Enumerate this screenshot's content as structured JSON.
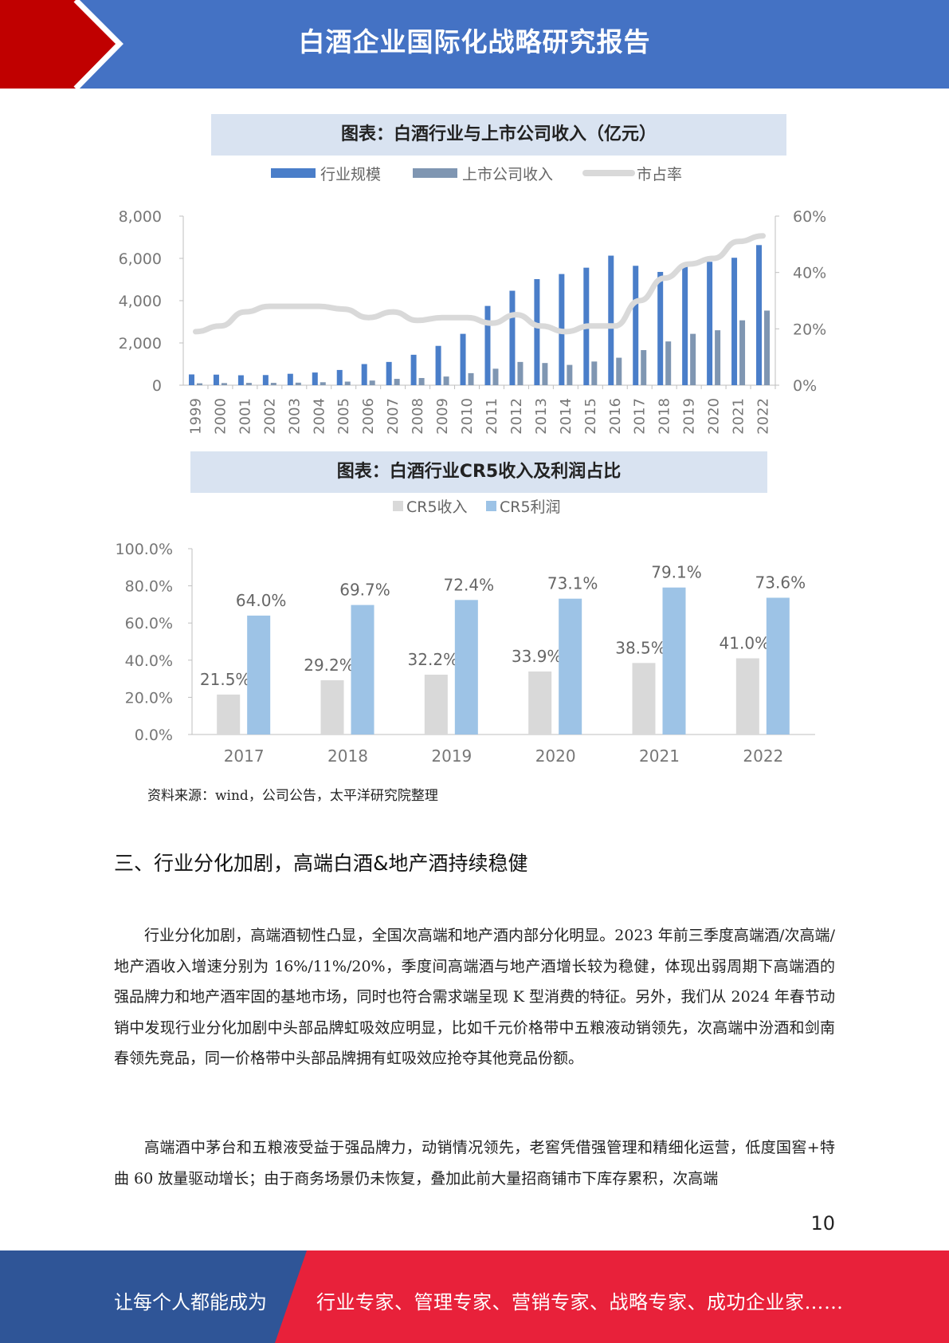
{
  "header": {
    "title": "白酒企业国际化战略研究报告"
  },
  "charts": {
    "chart1_title": "图表：白酒行业与上市公司收入（亿元）",
    "chart2_title": "图表：白酒行业CR5收入及利润占比"
  },
  "chart_data": [
    {
      "type": "bar",
      "title": "图表：白酒行业与上市公司收入（亿元）",
      "categories": [
        "1999",
        "2000",
        "2001",
        "2002",
        "2003",
        "2004",
        "2005",
        "2006",
        "2007",
        "2008",
        "2009",
        "2010",
        "2011",
        "2012",
        "2013",
        "2014",
        "2015",
        "2016",
        "2017",
        "2018",
        "2019",
        "2020",
        "2021",
        "2022"
      ],
      "series": [
        {
          "name": "行业规模",
          "type": "bar",
          "axis": "left",
          "color": "#4a7ec9",
          "values": [
            510,
            500,
            470,
            480,
            540,
            600,
            720,
            1000,
            1100,
            1440,
            1860,
            2430,
            3750,
            4470,
            5020,
            5260,
            5560,
            6130,
            5650,
            5360,
            5620,
            5840,
            6030,
            6630
          ]
        },
        {
          "name": "上市公司收入",
          "type": "bar",
          "axis": "left",
          "color": "#7f96b2",
          "values": [
            90,
            100,
            110,
            110,
            120,
            140,
            170,
            220,
            300,
            340,
            410,
            570,
            780,
            1100,
            1050,
            960,
            1120,
            1300,
            1660,
            2070,
            2430,
            2600,
            3070,
            3530
          ]
        },
        {
          "name": "市占率",
          "type": "line",
          "axis": "right",
          "color": "#d9d9d9",
          "values": [
            0.19,
            0.21,
            0.26,
            0.28,
            0.28,
            0.28,
            0.27,
            0.24,
            0.26,
            0.23,
            0.24,
            0.24,
            0.22,
            0.25,
            0.21,
            0.19,
            0.21,
            0.21,
            0.3,
            0.38,
            0.43,
            0.45,
            0.51,
            0.53
          ]
        }
      ],
      "ylim": [
        0,
        8000
      ],
      "yticks": [
        "0",
        "2,000",
        "4,000",
        "6,000",
        "8,000"
      ],
      "y2lim": [
        0,
        0.6
      ],
      "y2ticks": [
        "0%",
        "20%",
        "40%",
        "60%"
      ],
      "legend_position": "top-center",
      "grid": false
    },
    {
      "type": "bar",
      "title": "图表：白酒行业CR5收入及利润占比",
      "categories": [
        "2017",
        "2018",
        "2019",
        "2020",
        "2021",
        "2022"
      ],
      "series": [
        {
          "name": "CR5收入",
          "color": "#d9d9d9",
          "values": [
            21.5,
            29.2,
            32.2,
            33.9,
            38.5,
            41.0
          ],
          "labels": [
            "21.5%",
            "29.2%",
            "32.2%",
            "33.9%",
            "38.5%",
            "41.0%"
          ]
        },
        {
          "name": "CR5利润",
          "color": "#9dc3e6",
          "values": [
            64.0,
            69.7,
            72.4,
            73.1,
            79.1,
            73.6
          ],
          "labels": [
            "64.0%",
            "69.7%",
            "72.4%",
            "73.1%",
            "79.1%",
            "73.6%"
          ]
        }
      ],
      "ylim": [
        0,
        100
      ],
      "yticks": [
        "0.0%",
        "20.0%",
        "40.0%",
        "60.0%",
        "80.0%",
        "100.0%"
      ],
      "legend_position": "top-center",
      "grid": false
    }
  ],
  "source_note": "资料来源：wind，公司公告，太平洋研究院整理",
  "section": {
    "heading": "三、行业分化加剧，高端白酒&地产酒持续稳健",
    "para1": "行业分化加剧，高端酒韧性凸显，全国次高端和地产酒内部分化明显。2023 年前三季度高端酒/次高端/地产酒收入增速分别为 16%/11%/20%，季度间高端酒与地产酒增长较为稳健，体现出弱周期下高端酒的强品牌力和地产酒牢固的基地市场，同时也符合需求端呈现 K 型消费的特征。另外，我们从 2024 年春节动销中发现行业分化加剧中头部品牌虹吸效应明显，比如千元价格带中五粮液动销领先，次高端中汾酒和剑南春领先竞品，同一价格带中头部品牌拥有虹吸效应抢夺其他竞品份额。",
    "para2": "高端酒中茅台和五粮液受益于强品牌力，动销情况领先，老窖凭借强管理和精细化运营，低度国窖+特曲 60 放量驱动增长；由于商务场景仍未恢复，叠加此前大量招商铺市下库存累积，次高端"
  },
  "page_number": "10",
  "footer": {
    "left": "让每个人都能成为",
    "right": "行业专家、管理专家、营销专家、战略专家、成功企业家……"
  }
}
